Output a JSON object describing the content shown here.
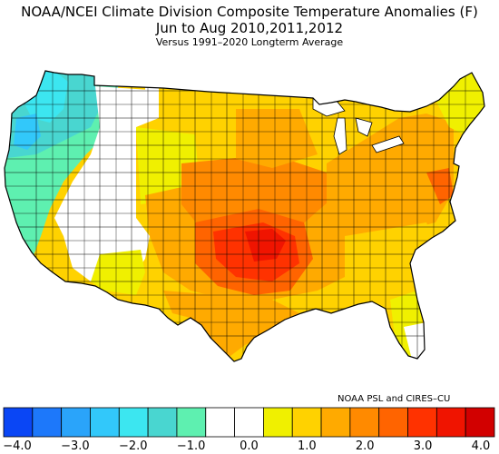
{
  "title_line1": "NOAA/NCEI Climate Division Composite Temperature Anomalies (F)",
  "title_line2": "Jun to Aug  2010,2011,2012",
  "title_line3": "Versus 1991–2020 Longterm Average",
  "credit": "NOAA PSL and CIRES–CU",
  "colorbar": {
    "colors": [
      "#0a46f5",
      "#1d78fa",
      "#2aa4fa",
      "#32c8fa",
      "#3ce6f0",
      "#49d6d0",
      "#5ef0b0",
      "#ffffff",
      "#ffffff",
      "#f0f000",
      "#ffd200",
      "#ffaa00",
      "#ff8a00",
      "#ff6400",
      "#ff3200",
      "#f01400",
      "#d20000"
    ],
    "tick_labels": [
      "−4.0",
      "−3.0",
      "−2.0",
      "−1.0",
      "0.0",
      "1.0",
      "2.0",
      "3.0",
      "4.0"
    ]
  },
  "map": {
    "regions": [
      {
        "name": "pacific-northwest",
        "anomaly": "-1.5 to -1.0",
        "color": "#49d6d0"
      },
      {
        "name": "washington-interior",
        "anomaly": "-2.0 to -1.5",
        "color": "#3ce6f0"
      },
      {
        "name": "california",
        "anomaly": "-1.0 to -0.5",
        "color": "#5ef0b0"
      },
      {
        "name": "great-basin",
        "anomaly": "-0.5 to 0.5",
        "color": "#ffffff"
      },
      {
        "name": "northern-rockies",
        "anomaly": "0.5 to 1.0",
        "color": "#f0f000"
      },
      {
        "name": "northern-plains",
        "anomaly": "1.0 to 1.5",
        "color": "#ffd200"
      },
      {
        "name": "central-plains",
        "anomaly": "2.0 to 2.5",
        "color": "#ff8a00"
      },
      {
        "name": "southern-plains",
        "anomaly": "3.0 to 3.5",
        "color": "#ff3200"
      },
      {
        "name": "southeast",
        "anomaly": "1.0 to 1.5",
        "color": "#ffd200"
      },
      {
        "name": "northeast",
        "anomaly": "1.0 to 2.0",
        "color": "#ffaa00"
      },
      {
        "name": "new-england",
        "anomaly": "0.5 to 1.0",
        "color": "#f0f000"
      }
    ]
  }
}
